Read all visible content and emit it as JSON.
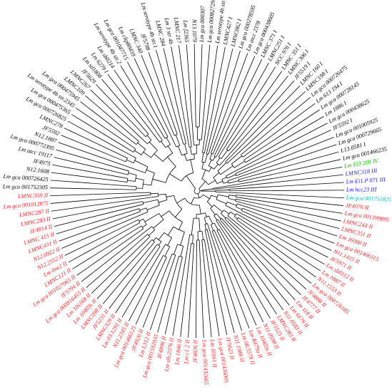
{
  "figure": {
    "type": "circular-phylogenetic-tree",
    "line_color": "#000000",
    "lineage_colors": {
      "I": "#000000",
      "II": "#ff2020",
      "III": "#1a1aff",
      "IV": "#00bb00",
      "other": "#00bbbb"
    }
  },
  "leaves": [
    {
      "label": "Lm serotype 4b str.1",
      "color": "#000000"
    },
    {
      "label": "LMNC427 I",
      "color": "#000000"
    },
    {
      "label": "LMNC062 I",
      "color": "#000000"
    },
    {
      "label": "Lm gca 000278595",
      "color": "#000000"
    },
    {
      "label": "Lm atcc 2378",
      "color": "#000000"
    },
    {
      "label": "Lm gca 000438605",
      "color": "#000000"
    },
    {
      "label": "LMNC 371 I",
      "color": "#000000"
    },
    {
      "label": "LMNC251 I",
      "color": "#000000"
    },
    {
      "label": "NCC 976 I",
      "color": "#000000"
    },
    {
      "label": "LMNC 351 I",
      "color": "#000000"
    },
    {
      "label": "LMNC 306 I",
      "color": "#000000"
    },
    {
      "label": "JF5519 I",
      "color": "#000000"
    },
    {
      "label": "LMNC 160 I",
      "color": "#000000"
    },
    {
      "label": "LMNC198 I",
      "color": "#000000"
    },
    {
      "label": "Lm gca 000726475",
      "color": "#000000"
    },
    {
      "label": "Lm 613 194 I",
      "color": "#000000"
    },
    {
      "label": "Lm gca 000728145",
      "color": "#000000"
    },
    {
      "label": "Lm 1886 I",
      "color": "#000000"
    },
    {
      "label": "Lm gca 000438625",
      "color": "#000000"
    },
    {
      "label": "JF5592 I",
      "color": "#000000"
    },
    {
      "label": "Lm gca 001005925",
      "color": "#000000"
    },
    {
      "label": "Lm gca 000729665",
      "color": "#000000"
    },
    {
      "label": "L13.0581 I",
      "color": "#000000"
    },
    {
      "label": "Lm gca 001466235",
      "color": "#000000"
    },
    {
      "label": "Lm Ei3 208 IV",
      "color": "#00bb00"
    },
    {
      "label": "LMNC318 III",
      "color": "#1a1aff"
    },
    {
      "label": "Lm Ei1.P 071 III",
      "color": "#1a1aff"
    },
    {
      "label": "Lm hcc23 III",
      "color": "#1a1aff"
    },
    {
      "label": "Lm gca 001751825",
      "color": "#00bbbb"
    },
    {
      "label": "JF4976 II",
      "color": "#ff2020"
    },
    {
      "label": "Lm gca 001399895",
      "color": "#ff2020"
    },
    {
      "label": "LMNC244 II",
      "color": "#ff2020"
    },
    {
      "label": "LMNC351 II",
      "color": "#ff2020"
    },
    {
      "label": "Lm J6900 II",
      "color": "#ff2020"
    },
    {
      "label": "Lm gca 001466115",
      "color": "#ff2020"
    },
    {
      "label": "N11.1415 II",
      "color": "#ff2020"
    },
    {
      "label": "JF5971 II",
      "color": "#ff2020"
    },
    {
      "label": "Lm sb0112 II",
      "color": "#ff2020"
    },
    {
      "label": "Lm 1887 II",
      "color": "#ff2020"
    },
    {
      "label": "N11.1553 II",
      "color": "#ff2020"
    },
    {
      "label": "Lm gca 000726185",
      "color": "#ff2020"
    },
    {
      "label": "JF4888 II",
      "color": "#ff2020"
    },
    {
      "label": "JF4777 II",
      "color": "#ff2020"
    },
    {
      "label": "Lm 118 II",
      "color": "#ff2020"
    },
    {
      "label": "Lm 6179 II",
      "color": "#ff2020"
    },
    {
      "label": "N11.0583 II",
      "color": "#ff2020"
    },
    {
      "label": "LMNC283 II",
      "color": "#ff2020"
    },
    {
      "label": "JF5525 II",
      "color": "#ff2020"
    },
    {
      "label": "N11.0598 II",
      "color": "#ff2020"
    },
    {
      "label": "Lm 10403s II",
      "color": "#ff2020"
    },
    {
      "label": "Lm R479a II",
      "color": "#ff2020"
    },
    {
      "label": "Lm 08.5578 II",
      "color": "#ff2020"
    },
    {
      "label": "N11.1986 II",
      "color": "#ff2020"
    },
    {
      "label": "JF5623 II",
      "color": "#ff2020"
    },
    {
      "label": "Lm gca 001436005",
      "color": "#ff2020"
    },
    {
      "label": "Lm J0161 II",
      "color": "#ff2020"
    },
    {
      "label": "Lm gca 001432665",
      "color": "#ff2020"
    },
    {
      "label": "JF4826 II",
      "color": "#ff2020"
    },
    {
      "label": "Lm c1 2 II",
      "color": "#ff2020"
    },
    {
      "label": "Lm 1846 II",
      "color": "#ff2020"
    },
    {
      "label": "Lm sllc2376 II",
      "color": "#ff2020"
    },
    {
      "label": "JF4896 II",
      "color": "#ff2020"
    },
    {
      "label": "Lm gca 001592035",
      "color": "#ff2020"
    },
    {
      "label": "Lm L312 II",
      "color": "#ff2020"
    },
    {
      "label": "JF4920 II",
      "color": "#ff2020"
    },
    {
      "label": "Lm gca 001466125",
      "color": "#ff2020"
    },
    {
      "label": "N11.2345 II",
      "color": "#ff2020"
    },
    {
      "label": "Lm 03.1291 II",
      "color": "#ff2020"
    },
    {
      "label": "LMNC329 II",
      "color": "#ff2020"
    },
    {
      "label": "JF5231 II",
      "color": "#ff2020"
    },
    {
      "label": "LMNC098 II",
      "color": "#ff2020"
    },
    {
      "label": "Lm 10403s II",
      "color": "#ff2020"
    },
    {
      "label": "Lm 10s168 II",
      "color": "#ff2020"
    },
    {
      "label": "Lm gca 000816455 II",
      "color": "#ff2020"
    },
    {
      "label": "JF5794 II",
      "color": "#ff2020"
    },
    {
      "label": "Lm gca 001027065 II",
      "color": "#ff2020"
    },
    {
      "label": "LMNC121 II",
      "color": "#ff2020"
    },
    {
      "label": "Lm 0ne2 II",
      "color": "#ff2020"
    },
    {
      "label": "N12.2552 II",
      "color": "#ff2020"
    },
    {
      "label": "N12.0922 II",
      "color": "#ff2020"
    },
    {
      "label": "LMNC431 II",
      "color": "#ff2020"
    },
    {
      "label": "LMNC 415 II",
      "color": "#ff2020"
    },
    {
      "label": "JF4914 II",
      "color": "#ff2020"
    },
    {
      "label": "LMNC283 II",
      "color": "#ff2020"
    },
    {
      "label": "LMNC287 II",
      "color": "#ff2020"
    },
    {
      "label": "Lm gca 001012875",
      "color": "#ff2020"
    },
    {
      "label": "LMNC359 II",
      "color": "#ff2020"
    },
    {
      "label": "Lm gca 001752305",
      "color": "#000000"
    },
    {
      "label": "Lm gca 000726425",
      "color": "#000000"
    },
    {
      "label": "N12.1608",
      "color": "#000000"
    },
    {
      "label": "JF4975",
      "color": "#000000"
    },
    {
      "label": "Lm atcc 19117",
      "color": "#000000"
    },
    {
      "label": "Lm gca 000772395",
      "color": "#000000"
    },
    {
      "label": "N12.1887",
      "color": "#000000"
    },
    {
      "label": "JF5592",
      "color": "#000000"
    },
    {
      "label": "LMNC278",
      "color": "#000000"
    },
    {
      "label": "Lm gca 000726825",
      "color": "#000000"
    },
    {
      "label": "Lm gca 000475365",
      "color": "#000000"
    },
    {
      "label": "Lm serotype 4b str.2345",
      "color": "#000000"
    },
    {
      "label": "Lm gca 000475945",
      "color": "#000000"
    },
    {
      "label": "LMNC109",
      "color": "#000000"
    },
    {
      "label": "LMNC267",
      "color": "#000000"
    },
    {
      "label": "JF5629",
      "color": "#000000"
    },
    {
      "label": "Lm sd1808",
      "color": "#000000"
    },
    {
      "label": "Lm 6279 I",
      "color": "#000000"
    },
    {
      "label": "Lm sb0214",
      "color": "#000000"
    },
    {
      "label": "Lm serotype 4b str.2",
      "color": "#000000"
    },
    {
      "label": "Lm gca 001047715",
      "color": "#000000"
    },
    {
      "label": "Lm clip80459",
      "color": "#000000"
    },
    {
      "label": "LMNC 340",
      "color": "#000000"
    },
    {
      "label": "JF5798",
      "color": "#000000"
    },
    {
      "label": "Lm serotype 4b str.1",
      "color": "#000000"
    },
    {
      "label": "LMNC 284",
      "color": "#000000"
    },
    {
      "label": "Lm 3 str 4b",
      "color": "#000000"
    },
    {
      "label": "LMNC 217",
      "color": "#000000"
    },
    {
      "label": "Lm f2365",
      "color": "#000000"
    },
    {
      "label": "N13.1079",
      "color": "#000000"
    },
    {
      "label": "Lm gca 000307",
      "color": "#000000"
    },
    {
      "label": "Lm gca 000827295",
      "color": "#000000"
    }
  ]
}
